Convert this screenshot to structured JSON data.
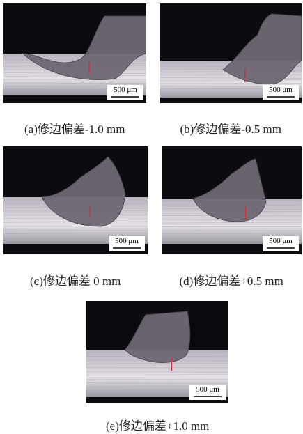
{
  "figure": {
    "panels": [
      {
        "caption": "(a)修边偏差-1.0 mm",
        "scale_bar": "500 μm"
      },
      {
        "caption": "(b)修边偏差-0.5 mm",
        "scale_bar": "500 μm"
      },
      {
        "caption": "(c)修边偏差 0 mm",
        "scale_bar": "500 μm"
      },
      {
        "caption": "(d)修边偏差+0.5 mm",
        "scale_bar": "500 μm"
      },
      {
        "caption": "(e)修边偏差+1.0 mm",
        "scale_bar": "500 μm"
      }
    ]
  }
}
